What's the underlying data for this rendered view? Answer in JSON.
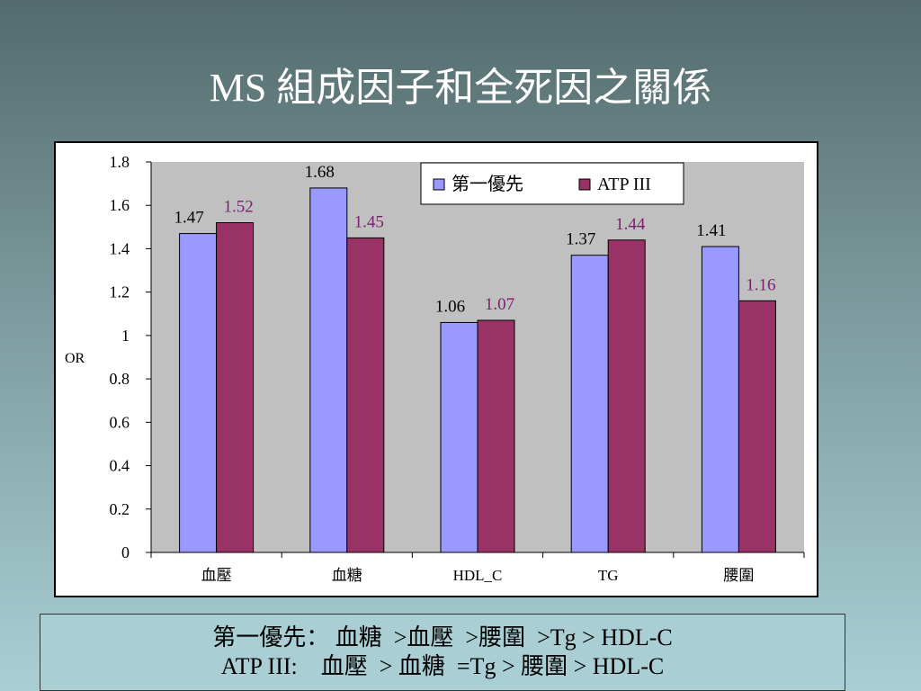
{
  "slide": {
    "title": "MS 組成因子和全死因之關係"
  },
  "chart_data": {
    "type": "bar",
    "categories": [
      "血壓",
      "血糖",
      "HDL_C",
      "TG",
      "腰圍"
    ],
    "series": [
      {
        "name": "第一優先",
        "values": [
          1.47,
          1.68,
          1.06,
          1.37,
          1.41
        ],
        "labels": [
          "1.47",
          "1.68",
          "1.06",
          "1.37",
          "1.41"
        ],
        "color": "#9999ff",
        "label_color": "#000000"
      },
      {
        "name": "ATP III",
        "values": [
          1.52,
          1.45,
          1.07,
          1.44,
          1.16
        ],
        "labels": [
          "1.52",
          "1.45",
          "1.07",
          "1.44",
          "1.16"
        ],
        "color": "#993366",
        "label_color": "#7a1f6e"
      }
    ],
    "ylabel": "OR",
    "xlabel": "",
    "ylim": [
      0,
      1.8
    ],
    "yticks": [
      "0",
      "0.2",
      "0.4",
      "0.6",
      "0.8",
      "1",
      "1.2",
      "1.4",
      "1.6",
      "1.8"
    ],
    "grid": false,
    "plot_background": "#c0c0c0",
    "legend_position": "top-right"
  },
  "summary": {
    "line1": "第一優先： 血糖  >血壓  >腰圍  >Tg > HDL-C",
    "line2": "ATP III:    血壓  > 血糖  =Tg > 腰圍 > HDL-C"
  }
}
